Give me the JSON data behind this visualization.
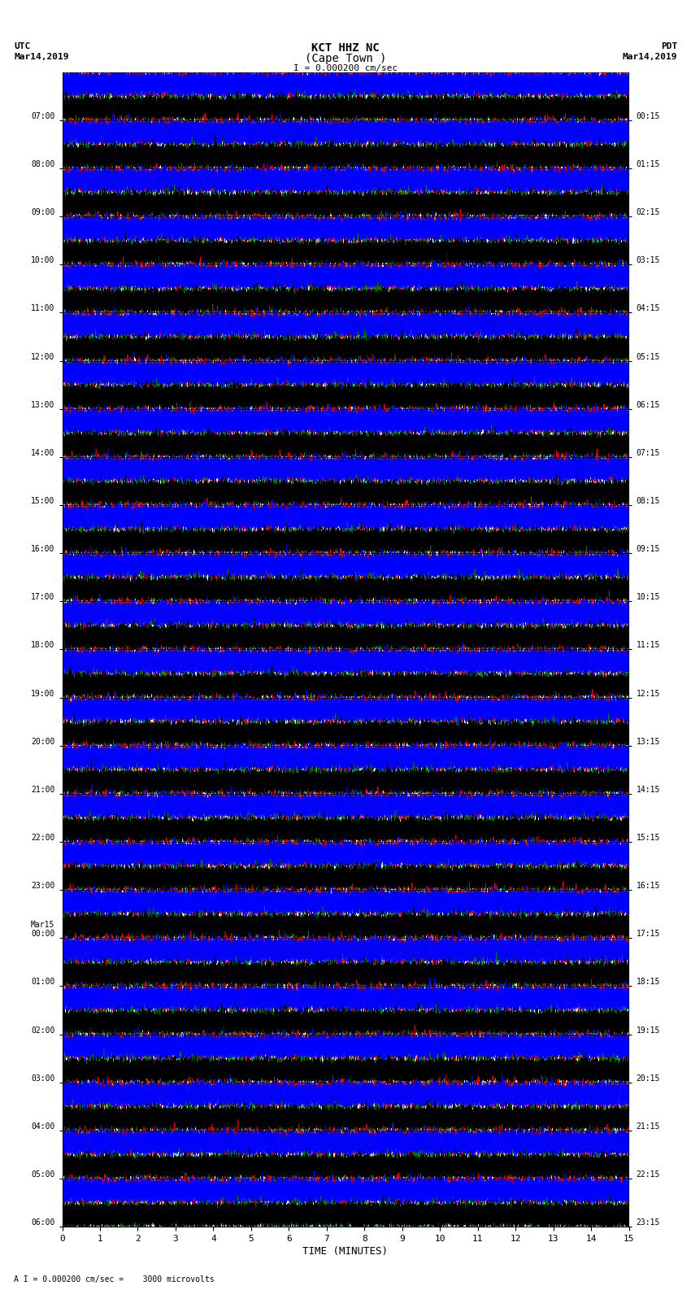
{
  "title_line1": "KCT HHZ NC",
  "title_line2": "(Cape Town )",
  "title_line3": "I = 0.000200 cm/sec",
  "left_label1": "UTC",
  "left_label2": "Mar14,2019",
  "right_label1": "PDT",
  "right_label2": "Mar14,2019",
  "scale_label": "A I = 0.000200 cm/sec =    3000 microvolts",
  "xlabel": "TIME (MINUTES)",
  "utc_times": [
    "07:00",
    "08:00",
    "09:00",
    "10:00",
    "11:00",
    "12:00",
    "13:00",
    "14:00",
    "15:00",
    "16:00",
    "17:00",
    "18:00",
    "19:00",
    "20:00",
    "21:00",
    "22:00",
    "23:00",
    "Mar15\n00:00",
    "01:00",
    "02:00",
    "03:00",
    "04:00",
    "05:00",
    "06:00"
  ],
  "pdt_times": [
    "00:15",
    "01:15",
    "02:15",
    "03:15",
    "04:15",
    "05:15",
    "06:15",
    "07:15",
    "08:15",
    "09:15",
    "10:15",
    "11:15",
    "12:15",
    "13:15",
    "14:15",
    "15:15",
    "16:15",
    "17:15",
    "18:15",
    "19:15",
    "20:15",
    "21:15",
    "22:15",
    "23:15"
  ],
  "n_rows": 24,
  "n_minutes": 15,
  "samples_per_row": 54000,
  "colors_upper": [
    "red",
    "blue"
  ],
  "colors_lower": [
    "green",
    "black"
  ],
  "background_color": "white",
  "trace_lw": 0.4,
  "fig_width": 8.5,
  "fig_height": 16.13,
  "amplitude_scale": 0.48
}
